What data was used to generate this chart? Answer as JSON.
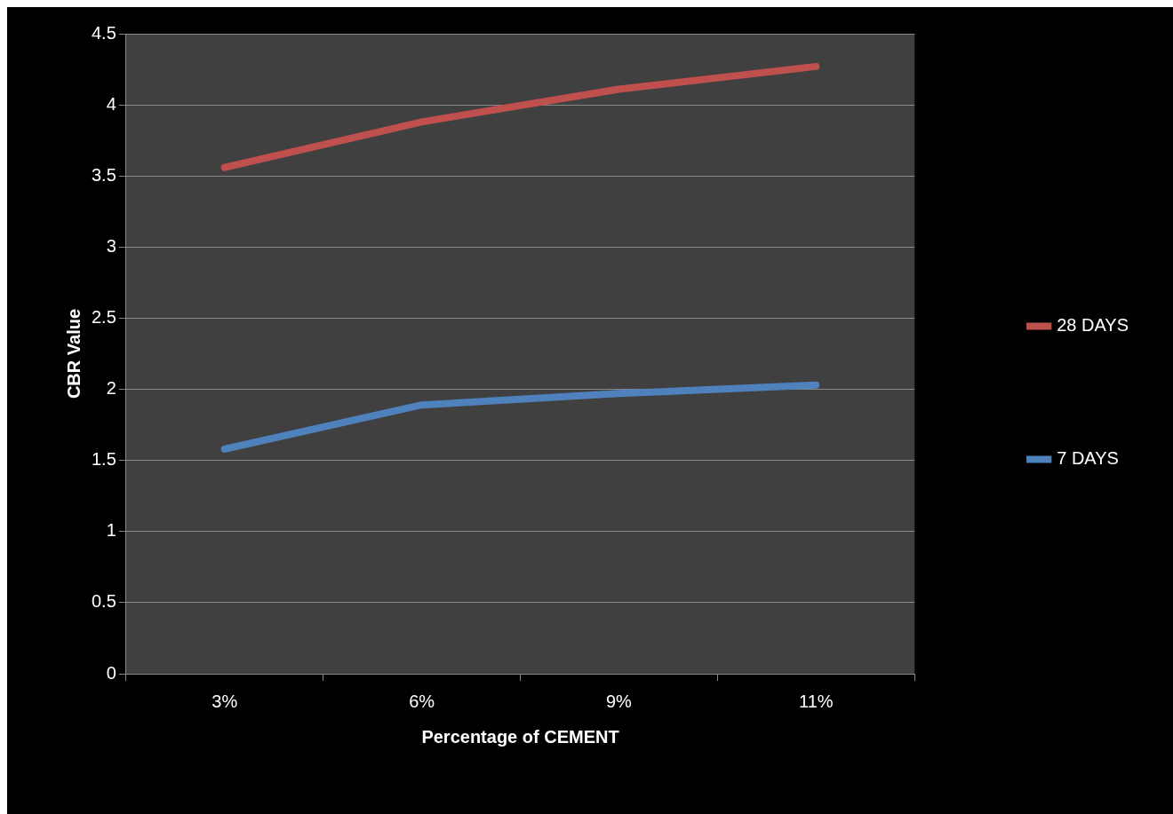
{
  "chart_data": {
    "type": "line",
    "xlabel": "Percentage of CEMENT",
    "ylabel": "CBR Value",
    "categories": [
      "3%",
      "6%",
      "9%",
      "11%"
    ],
    "series": [
      {
        "name": "28 DAYS",
        "color": "#c0504d",
        "values": [
          3.56,
          3.88,
          4.11,
          4.27
        ]
      },
      {
        "name": "7 DAYS",
        "color": "#4f81bd",
        "values": [
          1.58,
          1.89,
          1.97,
          2.03
        ]
      }
    ],
    "ylim": [
      0,
      4.5
    ],
    "yticks": [
      0,
      0.5,
      1,
      1.5,
      2,
      2.5,
      3,
      3.5,
      4,
      4.5
    ],
    "grid": "y",
    "legend": "right",
    "marker": "none",
    "line_style": "solid"
  }
}
